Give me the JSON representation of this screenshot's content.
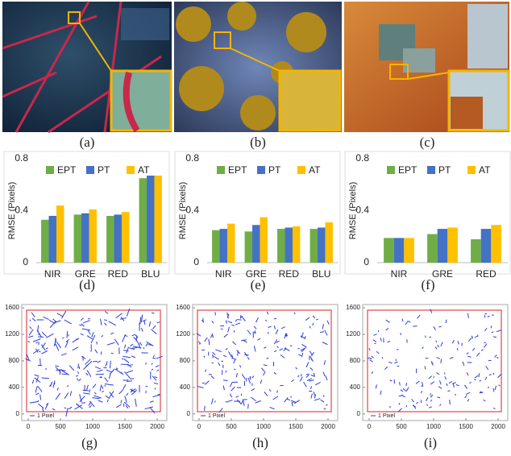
{
  "panels": [
    {
      "caption": "(a)"
    },
    {
      "caption": "(b)"
    },
    {
      "caption": "(c)"
    }
  ],
  "chart_data": [
    {
      "type": "bar",
      "caption": "(d)",
      "ylabel": "RMSE (Pixels)",
      "categories": [
        "NIR",
        "GRE",
        "RED",
        "BLU"
      ],
      "ylim": [
        0,
        0.8
      ],
      "yticks": [
        0,
        0.4,
        0.8
      ],
      "series": [
        {
          "name": "EPT",
          "color": "#70ad47",
          "values": [
            0.33,
            0.37,
            0.36,
            0.65
          ]
        },
        {
          "name": "PT",
          "color": "#4472c4",
          "values": [
            0.36,
            0.38,
            0.37,
            0.67
          ]
        },
        {
          "name": "AT",
          "color": "#ffc000",
          "values": [
            0.44,
            0.41,
            0.39,
            0.67
          ]
        }
      ]
    },
    {
      "type": "bar",
      "caption": "(e)",
      "ylabel": "RMSE (Pixels)",
      "categories": [
        "NIR",
        "GRE",
        "RED",
        "BLU"
      ],
      "ylim": [
        0,
        0.8
      ],
      "yticks": [
        0,
        0.4,
        0.8
      ],
      "series": [
        {
          "name": "EPT",
          "color": "#70ad47",
          "values": [
            0.25,
            0.24,
            0.26,
            0.26
          ]
        },
        {
          "name": "PT",
          "color": "#4472c4",
          "values": [
            0.26,
            0.29,
            0.27,
            0.27
          ]
        },
        {
          "name": "AT",
          "color": "#ffc000",
          "values": [
            0.3,
            0.35,
            0.28,
            0.31
          ]
        }
      ]
    },
    {
      "type": "bar",
      "caption": "(f)",
      "ylabel": "RMSE (Pixels)",
      "categories": [
        "NIR",
        "GRE",
        "RED"
      ],
      "ylim": [
        0,
        0.8
      ],
      "yticks": [
        0,
        0.4,
        0.8
      ],
      "series": [
        {
          "name": "EPT",
          "color": "#70ad47",
          "values": [
            0.19,
            0.22,
            0.18
          ]
        },
        {
          "name": "PT",
          "color": "#4472c4",
          "values": [
            0.19,
            0.26,
            0.26
          ]
        },
        {
          "name": "AT",
          "color": "#ffc000",
          "values": [
            0.19,
            0.27,
            0.29
          ]
        }
      ]
    },
    {
      "type": "quiver",
      "caption": "(g)",
      "legend": "1 Pixel",
      "xlim": [
        -100,
        2150
      ],
      "ylim": [
        -100,
        1650
      ],
      "xticks": [
        0,
        500,
        1000,
        1500,
        2000
      ],
      "yticks": [
        0,
        400,
        800,
        1200,
        1600
      ]
    },
    {
      "type": "quiver",
      "caption": "(h)",
      "legend": "1 Pixel",
      "xlim": [
        -100,
        2150
      ],
      "ylim": [
        -100,
        1650
      ],
      "xticks": [
        0,
        500,
        1000,
        1500,
        2000
      ],
      "yticks": [
        0,
        400,
        800,
        1200,
        1600
      ]
    },
    {
      "type": "quiver",
      "caption": "(i)",
      "legend": "1 Pixel",
      "xlim": [
        -100,
        2150
      ],
      "ylim": [
        -100,
        1650
      ],
      "xticks": [
        0,
        500,
        1000,
        1500,
        2000
      ],
      "yticks": [
        0,
        400,
        800,
        1200,
        1600
      ]
    }
  ]
}
